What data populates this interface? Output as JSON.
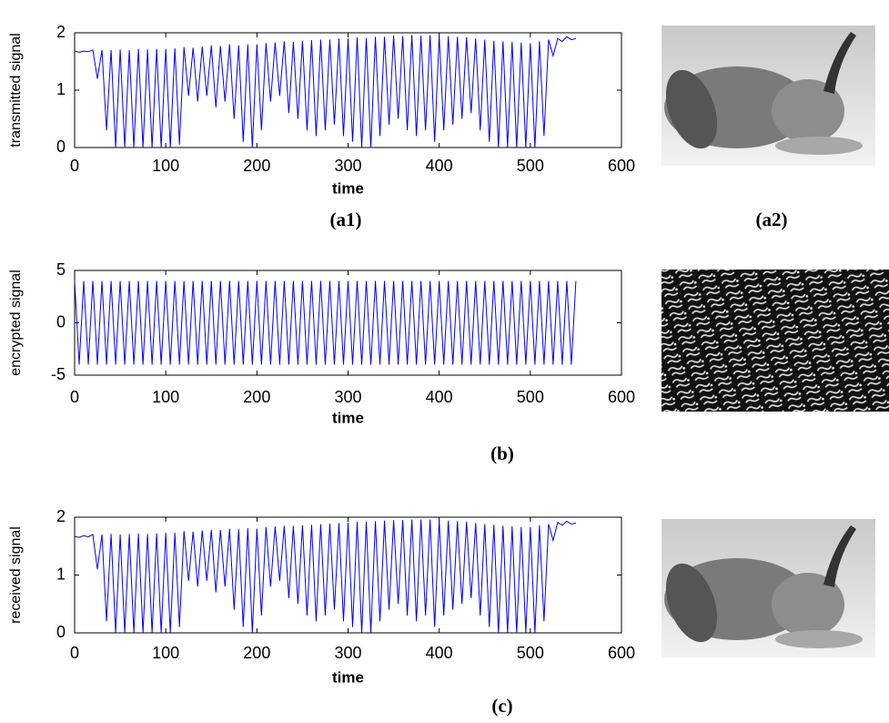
{
  "chart_data": [
    {
      "type": "line",
      "ylabel": "transmitted signal",
      "xlabel": "time",
      "caption": "(a1)",
      "xlim": [
        0,
        600
      ],
      "ylim": [
        0,
        2
      ],
      "xticks": [
        0,
        100,
        200,
        300,
        400,
        500,
        600
      ],
      "yticks": [
        0,
        1,
        2
      ],
      "series": [
        {
          "color": "#0000ff",
          "x": [
            0,
            5,
            10,
            15,
            20,
            25,
            30,
            35,
            40,
            45,
            50,
            55,
            60,
            65,
            70,
            75,
            80,
            85,
            90,
            95,
            100,
            105,
            110,
            115,
            120,
            125,
            130,
            135,
            140,
            145,
            150,
            155,
            160,
            165,
            170,
            175,
            180,
            185,
            190,
            195,
            200,
            205,
            210,
            215,
            220,
            225,
            230,
            235,
            240,
            245,
            250,
            255,
            260,
            265,
            270,
            275,
            280,
            285,
            290,
            295,
            300,
            305,
            310,
            315,
            320,
            325,
            330,
            335,
            340,
            345,
            350,
            355,
            360,
            365,
            370,
            375,
            380,
            385,
            390,
            395,
            400,
            405,
            410,
            415,
            420,
            425,
            430,
            435,
            440,
            445,
            450,
            455,
            460,
            465,
            470,
            475,
            480,
            485,
            490,
            495,
            500,
            505,
            510,
            515,
            520,
            525,
            530,
            535,
            540,
            545,
            550
          ],
          "values": [
            1.68,
            1.66,
            1.68,
            1.67,
            1.7,
            1.2,
            1.7,
            0.3,
            1.7,
            0,
            1.71,
            0,
            1.7,
            0,
            1.72,
            0,
            1.71,
            0,
            1.72,
            0,
            1.72,
            0,
            1.73,
            0.05,
            1.75,
            0.9,
            1.74,
            0.8,
            1.76,
            0.9,
            1.78,
            0.7,
            1.77,
            0.8,
            1.8,
            0.5,
            1.78,
            0.1,
            1.8,
            0,
            1.8,
            0.3,
            1.82,
            0.8,
            1.83,
            0.9,
            1.85,
            0.6,
            1.84,
            0.5,
            1.86,
            0.3,
            1.87,
            0.2,
            1.88,
            0.3,
            1.88,
            0.4,
            1.9,
            0.2,
            1.9,
            0.1,
            1.92,
            0,
            1.91,
            0,
            1.93,
            0.2,
            1.93,
            0.4,
            1.95,
            0.5,
            1.94,
            0.3,
            1.96,
            0.2,
            1.95,
            0.3,
            1.96,
            0.1,
            1.95,
            0.3,
            1.94,
            0.4,
            1.93,
            0.5,
            1.92,
            0.6,
            1.9,
            0.3,
            1.88,
            0.1,
            1.86,
            0,
            1.85,
            0,
            1.84,
            0,
            1.83,
            0,
            1.82,
            0,
            1.85,
            0.2,
            1.88,
            1.6,
            1.9,
            1.85,
            1.93,
            1.88,
            1.9
          ]
        }
      ]
    },
    {
      "type": "line",
      "ylabel": "encrypted signal",
      "xlabel": "time",
      "caption": "(b)",
      "xlim": [
        0,
        600
      ],
      "ylim": [
        -5,
        5
      ],
      "xticks": [
        0,
        100,
        200,
        300,
        400,
        500,
        600
      ],
      "yticks": [
        -5,
        0,
        5
      ],
      "series": [
        {
          "color": "#0000ff",
          "x": [
            0,
            5,
            10,
            15,
            20,
            25,
            30,
            35,
            40,
            45,
            50,
            55,
            60,
            65,
            70,
            75,
            80,
            85,
            90,
            95,
            100,
            105,
            110,
            115,
            120,
            125,
            130,
            135,
            140,
            145,
            150,
            155,
            160,
            165,
            170,
            175,
            180,
            185,
            190,
            195,
            200,
            205,
            210,
            215,
            220,
            225,
            230,
            235,
            240,
            245,
            250,
            255,
            260,
            265,
            270,
            275,
            280,
            285,
            290,
            295,
            300,
            305,
            310,
            315,
            320,
            325,
            330,
            335,
            340,
            345,
            350,
            355,
            360,
            365,
            370,
            375,
            380,
            385,
            390,
            395,
            400,
            405,
            410,
            415,
            420,
            425,
            430,
            435,
            440,
            445,
            450,
            455,
            460,
            465,
            470,
            475,
            480,
            485,
            490,
            495,
            500,
            505,
            510,
            515,
            520,
            525,
            530,
            535,
            540,
            545,
            550
          ],
          "values": [
            4,
            -4,
            4,
            -4,
            4,
            -4,
            4,
            -4,
            4,
            -4,
            4,
            -4,
            4,
            -4,
            4,
            -4,
            4,
            -4,
            4,
            -4,
            4,
            -4,
            4,
            -4,
            4,
            -4,
            4,
            -4,
            4,
            -4,
            4,
            -4,
            4,
            -4,
            4,
            -4,
            4,
            -4,
            4,
            -4,
            4,
            -4,
            4,
            -4,
            4,
            -4,
            4,
            -4,
            4,
            -4,
            4,
            -4,
            4,
            -4,
            4,
            -4,
            4,
            -4,
            4,
            -4,
            4,
            -4,
            4,
            -4,
            4,
            -4,
            4,
            -4,
            4,
            -4,
            4,
            -4,
            4,
            -4,
            4,
            -4,
            4,
            -4,
            4,
            -4,
            4,
            -4,
            4,
            -4,
            4,
            -4,
            4,
            -4,
            4,
            -4,
            4,
            -4,
            4,
            -4,
            4,
            -4,
            4,
            -4,
            4,
            -4,
            4,
            -4,
            4,
            -4,
            4,
            -4,
            4,
            -4,
            4,
            -4,
            4
          ]
        }
      ]
    },
    {
      "type": "line",
      "ylabel": "received signal",
      "xlabel": "time",
      "caption": "(c)",
      "xlim": [
        0,
        600
      ],
      "ylim": [
        0,
        2
      ],
      "xticks": [
        0,
        100,
        200,
        300,
        400,
        500,
        600
      ],
      "yticks": [
        0,
        1,
        2
      ],
      "series": [
        {
          "color": "#0000ff",
          "x": [
            0,
            5,
            10,
            15,
            20,
            25,
            30,
            35,
            40,
            45,
            50,
            55,
            60,
            65,
            70,
            75,
            80,
            85,
            90,
            95,
            100,
            105,
            110,
            115,
            120,
            125,
            130,
            135,
            140,
            145,
            150,
            155,
            160,
            165,
            170,
            175,
            180,
            185,
            190,
            195,
            200,
            205,
            210,
            215,
            220,
            225,
            230,
            235,
            240,
            245,
            250,
            255,
            260,
            265,
            270,
            275,
            280,
            285,
            290,
            295,
            300,
            305,
            310,
            315,
            320,
            325,
            330,
            335,
            340,
            345,
            350,
            355,
            360,
            365,
            370,
            375,
            380,
            385,
            390,
            395,
            400,
            405,
            410,
            415,
            420,
            425,
            430,
            435,
            440,
            445,
            450,
            455,
            460,
            465,
            470,
            475,
            480,
            485,
            490,
            495,
            500,
            505,
            510,
            515,
            520,
            525,
            530,
            535,
            540,
            545,
            550
          ],
          "values": [
            1.67,
            1.65,
            1.68,
            1.66,
            1.7,
            1.1,
            1.7,
            0.2,
            1.71,
            0,
            1.7,
            0,
            1.71,
            0,
            1.72,
            0,
            1.71,
            0,
            1.72,
            0,
            1.73,
            0,
            1.73,
            0.1,
            1.76,
            0.9,
            1.75,
            0.8,
            1.77,
            0.9,
            1.78,
            0.7,
            1.78,
            0.8,
            1.8,
            0.4,
            1.79,
            0.1,
            1.81,
            0,
            1.8,
            0.3,
            1.83,
            0.8,
            1.84,
            0.9,
            1.85,
            0.6,
            1.85,
            0.5,
            1.86,
            0.3,
            1.87,
            0.2,
            1.88,
            0.3,
            1.89,
            0.4,
            1.9,
            0.2,
            1.91,
            0.1,
            1.92,
            0,
            1.92,
            0,
            1.93,
            0.2,
            1.94,
            0.4,
            1.95,
            0.5,
            1.95,
            0.3,
            1.96,
            0.2,
            1.96,
            0.3,
            1.96,
            0.1,
            1.95,
            0.3,
            1.94,
            0.4,
            1.93,
            0.5,
            1.92,
            0.6,
            1.9,
            0.3,
            1.88,
            0.1,
            1.87,
            0,
            1.85,
            0,
            1.84,
            0,
            1.83,
            0,
            1.83,
            0,
            1.86,
            0.2,
            1.88,
            1.6,
            1.91,
            1.86,
            1.93,
            1.88,
            1.9
          ]
        }
      ]
    }
  ],
  "image_caption": "(a2)"
}
